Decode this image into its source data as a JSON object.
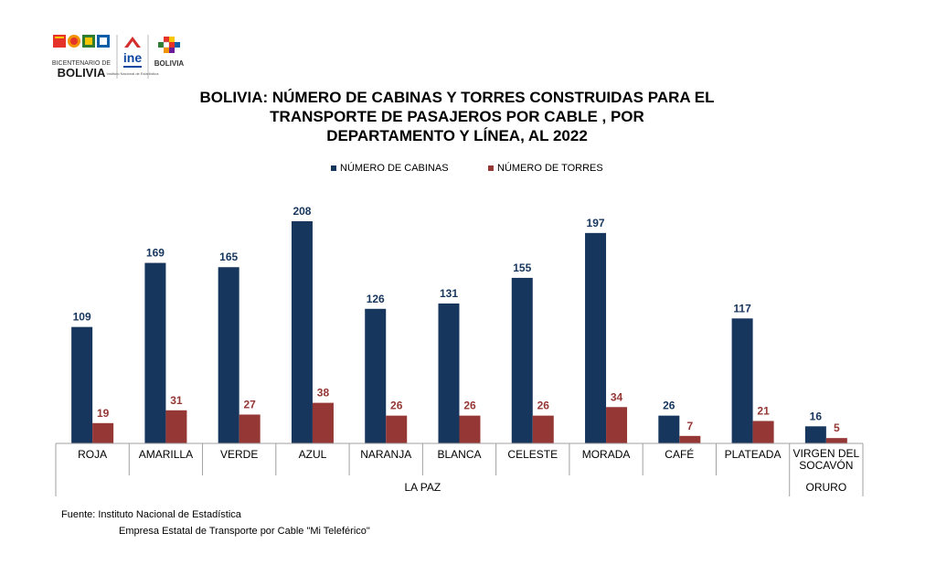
{
  "logos": {
    "bicentenario_line1": "BICENTENARIO DE",
    "bicentenario_line2": "BOLIVIA",
    "ine": "ine",
    "ine_sub": "Instituto Nacional de Estadística",
    "state": "BOLIVIA"
  },
  "title_lines": [
    "BOLIVIA: NÚMERO DE CABINAS Y TORRES CONSTRUIDAS PARA EL",
    "TRANSPORTE DE PASAJEROS POR CABLE , POR",
    "DEPARTAMENTO  Y LÍNEA, AL 2022"
  ],
  "chart_data": {
    "type": "bar",
    "title": "BOLIVIA: NÚMERO DE CABINAS Y TORRES CONSTRUIDAS PARA EL TRANSPORTE DE PASAJEROS POR CABLE , POR DEPARTAMENTO  Y LÍNEA, AL 2022",
    "categories": [
      "ROJA",
      "AMARILLA",
      "VERDE",
      "AZUL",
      "NARANJA",
      "BLANCA",
      "CELESTE",
      "MORADA",
      "CAFÉ",
      "PLATEADA",
      "VIRGEN DEL SOCAVÓN"
    ],
    "category_lines": [
      [
        "ROJA"
      ],
      [
        "AMARILLA"
      ],
      [
        "VERDE"
      ],
      [
        "AZUL"
      ],
      [
        "NARANJA"
      ],
      [
        "BLANCA"
      ],
      [
        "CELESTE"
      ],
      [
        "MORADA"
      ],
      [
        "CAFÉ"
      ],
      [
        "PLATEADA"
      ],
      [
        "VIRGEN DEL",
        "SOCAVÓN"
      ]
    ],
    "groups": [
      {
        "label": "LA PAZ",
        "start": 0,
        "end": 9
      },
      {
        "label": "ORURO",
        "start": 10,
        "end": 10
      }
    ],
    "series": [
      {
        "name": "NÚMERO DE CABINAS",
        "color": "#17365d",
        "label_color": "#17365d",
        "values": [
          109,
          169,
          165,
          208,
          126,
          131,
          155,
          197,
          26,
          117,
          16
        ]
      },
      {
        "name": "NÚMERO DE TORRES",
        "color": "#953735",
        "label_color": "#953735",
        "values": [
          19,
          31,
          27,
          38,
          26,
          26,
          26,
          34,
          7,
          21,
          5
        ]
      }
    ],
    "ylim": [
      0,
      220
    ],
    "legend_position": "top",
    "grid": false,
    "xlabel": "",
    "ylabel": ""
  },
  "source": {
    "line1": "Fuente: Instituto Nacional de Estadística",
    "line2": "Empresa Estatal de Transporte por Cable \"Mi  Teleférico\""
  }
}
